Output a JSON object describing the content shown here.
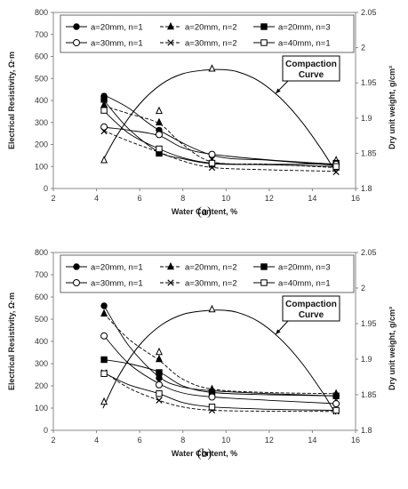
{
  "chart_data": [
    {
      "type": "line",
      "panel_label": "(a)",
      "xlabel": "Water Content, %",
      "ylabel": "Electrical Resistivity, Ω·m",
      "y2label": "Dry unit weight, g/cm³",
      "xlim": [
        2,
        16
      ],
      "ylim": [
        0,
        800
      ],
      "y2lim": [
        1.8,
        2.05
      ],
      "xticks": [
        "2",
        "4",
        "6",
        "8",
        "10",
        "12",
        "14",
        "16"
      ],
      "yticks": [
        "0",
        "100",
        "200",
        "300",
        "400",
        "500",
        "600",
        "700",
        "800"
      ],
      "y2ticks": [
        "1.8",
        "1.85",
        "1.9",
        "1.95",
        "2",
        "2.05"
      ],
      "legend_position": "top-left inside",
      "series": [
        {
          "name": "a=20mm, n=1",
          "marker": "circle-filled",
          "dash": "solid",
          "x": [
            4.35,
            6.9,
            9.35,
            15.1
          ],
          "y": [
            420,
            265,
            150,
            105
          ],
          "curve": [
            [
              4.35,
              425
            ],
            [
              5.5,
              365
            ],
            [
              6.9,
              265
            ],
            [
              9.4,
              150
            ],
            [
              12,
              128
            ],
            [
              15.1,
              105
            ]
          ]
        },
        {
          "name": "a=20mm, n=2",
          "marker": "triangle-filled",
          "dash": "dash",
          "x": [
            4.35,
            6.9,
            9.35,
            15.1
          ],
          "y": [
            380,
            300,
            125,
            95
          ],
          "curve": [
            [
              4.35,
              375
            ],
            [
              5.5,
              340
            ],
            [
              6.9,
              295
            ],
            [
              8,
              200
            ],
            [
              9.4,
              120
            ],
            [
              12,
              110
            ],
            [
              15.1,
              95
            ]
          ]
        },
        {
          "name": "a=20mm, n=3",
          "marker": "square-filled",
          "dash": "solid",
          "x": [
            4.35,
            6.9,
            9.35,
            15.1
          ],
          "y": [
            405,
            160,
            110,
            115
          ],
          "curve": [
            [
              4.35,
              400
            ],
            [
              5.5,
              270
            ],
            [
              6.9,
              165
            ],
            [
              8,
              135
            ],
            [
              9.4,
              112
            ],
            [
              12,
              110
            ],
            [
              15.1,
              112
            ]
          ]
        },
        {
          "name": "a=30mm, n=1",
          "marker": "circle-open",
          "dash": "solid",
          "x": [
            4.35,
            6.9,
            9.35,
            15.1
          ],
          "y": [
            280,
            245,
            155,
            110
          ],
          "curve": [
            [
              4.35,
              278
            ],
            [
              5.5,
              265
            ],
            [
              6.9,
              240
            ],
            [
              8,
              185
            ],
            [
              9.4,
              155
            ],
            [
              12,
              130
            ],
            [
              15.1,
              110
            ]
          ]
        },
        {
          "name": "a=30mm, n=2",
          "marker": "x",
          "dash": "dash",
          "x": [
            4.35,
            6.9,
            9.35,
            15.1
          ],
          "y": [
            260,
            170,
            95,
            75
          ],
          "curve": [
            [
              4.35,
              262
            ],
            [
              5.5,
              215
            ],
            [
              6.9,
              165
            ],
            [
              8,
              125
            ],
            [
              9.4,
              95
            ],
            [
              12,
              85
            ],
            [
              15.1,
              78
            ]
          ]
        },
        {
          "name": "a=40mm, n=1",
          "marker": "square-open",
          "dash": "solid",
          "x": [
            4.35,
            6.9,
            9.35,
            15.1
          ],
          "y": [
            355,
            180,
            115,
            100
          ],
          "curve": [
            [
              4.35,
              352
            ],
            [
              5.5,
              250
            ],
            [
              6.9,
              180
            ],
            [
              8,
              140
            ],
            [
              9.4,
              115
            ],
            [
              12,
              108
            ],
            [
              15.1,
              100
            ]
          ]
        }
      ],
      "compaction": {
        "label": [
          "Compaction",
          "Curve"
        ],
        "marker": "triangle-open",
        "x": [
          4.35,
          6.9,
          9.35,
          15.1
        ],
        "y": [
          1.84,
          1.91,
          1.97,
          1.84
        ],
        "curve_x": [
          4.3,
          5,
          6,
          7,
          8,
          9,
          9.7,
          10.5,
          11.5,
          12.5,
          13.5,
          14.5,
          15.1
        ],
        "curve_y": [
          1.84,
          1.878,
          1.92,
          1.948,
          1.963,
          1.968,
          1.969,
          1.966,
          1.953,
          1.929,
          1.895,
          1.852,
          1.822
        ]
      }
    },
    {
      "type": "line",
      "panel_label": "(b)",
      "xlabel": "Water Content, %",
      "ylabel": "Electrical Resistivity, Ω·m",
      "y2label": "Dry unit weight, g/cm³",
      "xlim": [
        2,
        16
      ],
      "ylim": [
        0,
        800
      ],
      "y2lim": [
        1.8,
        2.05
      ],
      "xticks": [
        "2",
        "4",
        "6",
        "8",
        "10",
        "12",
        "14",
        "16"
      ],
      "yticks": [
        "0",
        "100",
        "200",
        "300",
        "400",
        "500",
        "600",
        "700",
        "800"
      ],
      "y2ticks": [
        "1.8",
        "1.85",
        "1.9",
        "1.95",
        "2",
        "2.05"
      ],
      "legend_position": "top-left inside",
      "series": [
        {
          "name": "a=20mm, n=1",
          "marker": "circle-filled",
          "dash": "solid",
          "x": [
            4.35,
            6.9,
            9.35,
            15.1
          ],
          "y": [
            560,
            235,
            175,
            155
          ],
          "curve": [
            [
              4.35,
              560
            ],
            [
              5.5,
              380
            ],
            [
              6.9,
              240
            ],
            [
              8,
              195
            ],
            [
              9.4,
              178
            ],
            [
              12,
              165
            ],
            [
              15.1,
              155
            ]
          ]
        },
        {
          "name": "a=20mm, n=2",
          "marker": "triangle-filled",
          "dash": "dash",
          "x": [
            4.35,
            6.9,
            9.35,
            15.1
          ],
          "y": [
            525,
            320,
            185,
            165
          ],
          "curve": [
            [
              4.35,
              525
            ],
            [
              5.5,
              410
            ],
            [
              6.9,
              315
            ],
            [
              8,
              230
            ],
            [
              9.4,
              185
            ],
            [
              12,
              170
            ],
            [
              15.1,
              165
            ]
          ]
        },
        {
          "name": "a=20mm, n=3",
          "marker": "square-filled",
          "dash": "solid",
          "x": [
            4.35,
            6.9,
            9.35,
            15.1
          ],
          "y": [
            318,
            260,
            170,
            155
          ],
          "curve": [
            [
              4.35,
              318
            ],
            [
              5.5,
              300
            ],
            [
              6.9,
              262
            ],
            [
              8,
              200
            ],
            [
              9.4,
              170
            ],
            [
              12,
              160
            ],
            [
              15.1,
              155
            ]
          ]
        },
        {
          "name": "a=30mm, n=1",
          "marker": "circle-open",
          "dash": "solid",
          "x": [
            4.35,
            6.9,
            9.35,
            15.1
          ],
          "y": [
            425,
            205,
            150,
            120
          ],
          "curve": [
            [
              4.35,
              425
            ],
            [
              5.5,
              300
            ],
            [
              6.9,
              210
            ],
            [
              8,
              168
            ],
            [
              9.4,
              150
            ],
            [
              12,
              135
            ],
            [
              15.1,
              120
            ]
          ]
        },
        {
          "name": "a=30mm, n=2",
          "marker": "x",
          "dash": "dash",
          "x": [
            4.35,
            6.9,
            9.35,
            15.1
          ],
          "y": [
            260,
            135,
            90,
            85
          ],
          "curve": [
            [
              4.35,
              262
            ],
            [
              5.5,
              190
            ],
            [
              6.9,
              135
            ],
            [
              8,
              105
            ],
            [
              9.4,
              90
            ],
            [
              12,
              86
            ],
            [
              15.1,
              85
            ]
          ]
        },
        {
          "name": "a=40mm, n=1",
          "marker": "square-open",
          "dash": "solid",
          "x": [
            4.35,
            6.9,
            9.35,
            15.1
          ],
          "y": [
            255,
            165,
            105,
            90
          ],
          "curve": [
            [
              4.35,
              258
            ],
            [
              5.5,
              205
            ],
            [
              6.9,
              165
            ],
            [
              8,
              125
            ],
            [
              9.4,
              105
            ],
            [
              12,
              95
            ],
            [
              15.1,
              90
            ]
          ]
        }
      ],
      "compaction": {
        "label": [
          "Compaction",
          "Curve"
        ],
        "marker": "triangle-open",
        "x": [
          4.35,
          6.9,
          9.35,
          15.1
        ],
        "y": [
          1.84,
          1.91,
          1.97,
          1.84
        ],
        "curve_x": [
          4.3,
          5,
          6,
          7,
          8,
          9,
          9.7,
          10.5,
          11.5,
          12.5,
          13.5,
          14.5,
          15.1
        ],
        "curve_y": [
          1.831,
          1.875,
          1.92,
          1.948,
          1.963,
          1.968,
          1.969,
          1.966,
          1.953,
          1.929,
          1.895,
          1.852,
          1.822
        ]
      }
    }
  ]
}
